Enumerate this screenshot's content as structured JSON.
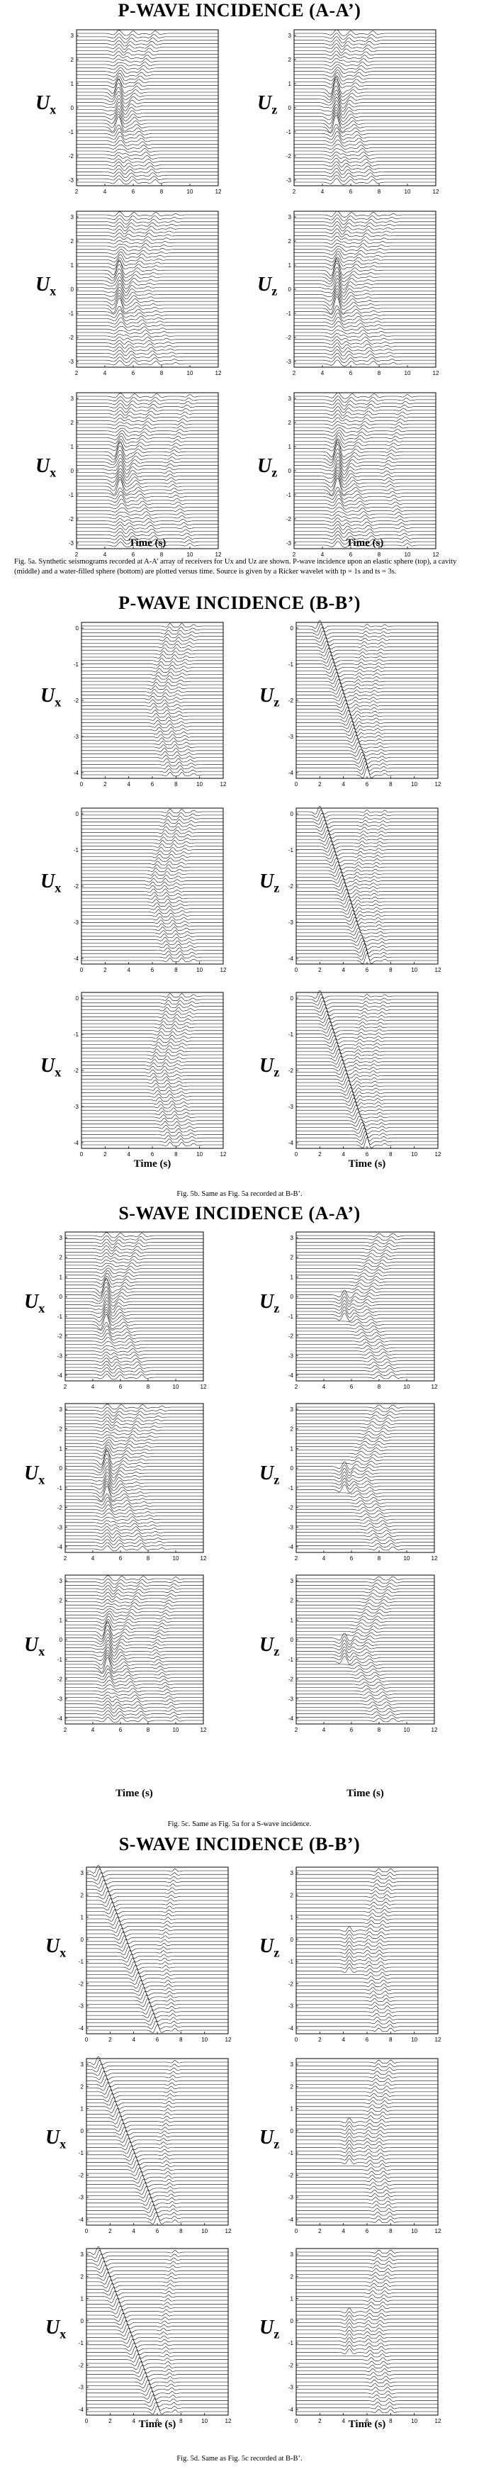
{
  "sections": [
    {
      "id": "pa",
      "title": "P-WAVE INCIDENCE (A-A’)",
      "caption": "Fig. 5a. Synthetic seismograms recorded at A-A’ array of receivers for Ux and Uz are shown. P-wave incidence upon an elastic sphere (top), a cavity (middle) and a water-filled sphere (bottom) are plotted versus time. Source is given by a Ricker wavelet with tp = 1s and ts = 3s.",
      "x_ticks": [
        "2",
        "4",
        "6",
        "8",
        "10",
        "12"
      ],
      "y_ticks": [
        "3",
        "2",
        "1",
        "0",
        "-1",
        "-2",
        "-3"
      ],
      "time_label": "Time (s)"
    },
    {
      "id": "pb",
      "title": "P-WAVE INCIDENCE (B-B’)",
      "caption": "Fig. 5b. Same as Fig. 5a recorded at B-B’.",
      "x_ticks": [
        "0",
        "2",
        "4",
        "6",
        "8",
        "10",
        "12"
      ],
      "y_ticks": [
        "0",
        "-1",
        "-2",
        "-3",
        "-4"
      ],
      "time_label": "Time (s)"
    },
    {
      "id": "sa",
      "title": "S-WAVE INCIDENCE (A-A’)",
      "caption": "Fig. 5c. Same as Fig. 5a for a S-wave incidence.",
      "x_ticks": [
        "2",
        "4",
        "6",
        "8",
        "10",
        "12"
      ],
      "y_ticks": [
        "3",
        "2",
        "1",
        "0",
        "-1",
        "-2",
        "-3",
        "-4"
      ],
      "time_label": "Time (s)"
    },
    {
      "id": "sb",
      "title": "S-WAVE INCIDENCE (B-B’)",
      "caption": "Fig. 5d. Same as Fig. 5c recorded at B-B’.",
      "x_ticks": [
        "0",
        "2",
        "4",
        "6",
        "8",
        "10",
        "12"
      ],
      "y_ticks": [
        "3",
        "2",
        "1",
        "0",
        "-1",
        "-2",
        "-3",
        "-4"
      ],
      "time_label": "Time (s)"
    }
  ],
  "labels": {
    "ux_main": "U",
    "ux_sub": "x",
    "uz_main": "U",
    "uz_sub": "z"
  },
  "chart_data": [
    {
      "type": "line",
      "title": "P-WAVE INCIDENCE (A-A’)",
      "xlabel": "Time (s)",
      "ylabel": "Ux / Uz",
      "xlim": [
        2,
        12
      ],
      "ylim": [
        -3,
        3
      ],
      "rows": [
        "elastic sphere",
        "cavity",
        "water-filled sphere"
      ]
    },
    {
      "type": "line",
      "title": "P-WAVE INCIDENCE (B-B’)",
      "xlabel": "Time (s)",
      "ylabel": "Ux / Uz",
      "xlim": [
        0,
        12
      ],
      "ylim": [
        -4,
        0
      ],
      "rows": [
        "elastic sphere",
        "cavity",
        "water-filled sphere"
      ]
    },
    {
      "type": "line",
      "title": "S-WAVE INCIDENCE (A-A’)",
      "xlabel": "Time (s)",
      "ylabel": "Ux / Uz",
      "xlim": [
        2,
        12
      ],
      "ylim": [
        -4,
        3
      ],
      "rows": [
        "elastic sphere",
        "cavity",
        "water-filled sphere"
      ]
    },
    {
      "type": "line",
      "title": "S-WAVE INCIDENCE (B-B’)",
      "xlabel": "Time (s)",
      "ylabel": "Ux / Uz",
      "xlim": [
        0,
        12
      ],
      "ylim": [
        -4,
        3
      ],
      "rows": [
        "elastic sphere",
        "cavity",
        "water-filled sphere"
      ]
    }
  ]
}
